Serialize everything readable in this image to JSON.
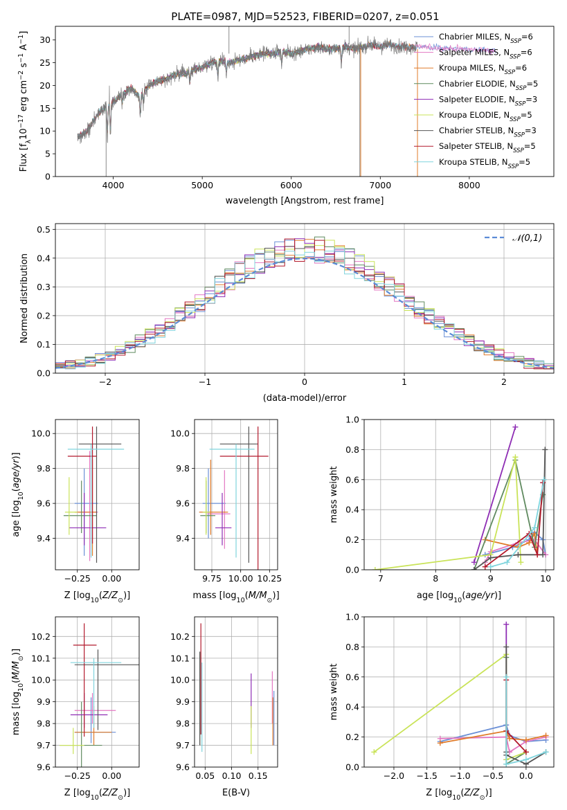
{
  "title": "PLATE=0987, MJD=52523, FIBERID=0207, z=0.051",
  "colors": [
    "#6a8fd6",
    "#e377c2",
    "#e07b2a",
    "#5f8a5f",
    "#8e2db4",
    "#c9e358",
    "#555555",
    "#b2182b",
    "#7fd4dd"
  ],
  "chart_data": [
    {
      "id": "spectrum",
      "type": "line",
      "xlabel": "wavelength [Angstrom, rest frame]",
      "ylabel": "Flux [f_λ 10^-17 erg cm^-2 s^-1 A^-1]",
      "xlim": [
        3350,
        8950
      ],
      "ylim": [
        0,
        33
      ],
      "xticks": [
        4000,
        5000,
        6000,
        7000,
        8000
      ],
      "yticks": [
        0,
        5,
        10,
        15,
        20,
        25,
        30
      ],
      "grid": false,
      "legend": "upper right",
      "data_range": [
        3600,
        7420
      ],
      "data_nodes": [
        [
          3600,
          8.5
        ],
        [
          3700,
          10
        ],
        [
          3800,
          13
        ],
        [
          3900,
          15
        ],
        [
          4000,
          16.5
        ],
        [
          4100,
          18
        ],
        [
          4200,
          19.5
        ],
        [
          4300,
          17.5
        ],
        [
          4400,
          20
        ],
        [
          4500,
          21
        ],
        [
          4600,
          21.5
        ],
        [
          4700,
          22.5
        ],
        [
          4800,
          22.5
        ],
        [
          4900,
          23.5
        ],
        [
          5000,
          24
        ],
        [
          5100,
          25
        ],
        [
          5200,
          25.5
        ],
        [
          5300,
          25
        ],
        [
          5400,
          25.5
        ],
        [
          5500,
          26
        ],
        [
          5600,
          26.5
        ],
        [
          5700,
          27
        ],
        [
          5800,
          27
        ],
        [
          5900,
          27.5
        ],
        [
          6000,
          27
        ],
        [
          6100,
          27.5
        ],
        [
          6200,
          28
        ],
        [
          6300,
          28.5
        ],
        [
          6400,
          28
        ],
        [
          6500,
          28
        ],
        [
          6600,
          28.5
        ],
        [
          6700,
          28
        ],
        [
          6800,
          28.5
        ],
        [
          6900,
          29
        ],
        [
          7000,
          28.5
        ],
        [
          7100,
          29
        ],
        [
          7200,
          28.5
        ],
        [
          7300,
          28.5
        ],
        [
          7420,
          28.5
        ]
      ],
      "series": [
        {
          "name": "Chabrier MILES, N_SSP=6",
          "label": "Chabrier MILES, N",
          "sub": "SSP",
          "eq": "=6",
          "range": [
            3600,
            8300
          ]
        },
        {
          "name": "Salpeter MILES, N_SSP=6",
          "label": "Salpeter MILES, N",
          "sub": "SSP",
          "eq": "=6",
          "range": [
            3600,
            8300
          ]
        },
        {
          "name": "Kroupa MILES, N_SSP=6",
          "label": "Kroupa MILES, N",
          "sub": "SSP",
          "eq": "=6",
          "range": [
            3600,
            7400
          ]
        },
        {
          "name": "Chabrier ELODIE, N_SSP=5",
          "label": "Chabrier ELODIE, N",
          "sub": "SSP",
          "eq": "=5",
          "range": [
            3900,
            6800
          ]
        },
        {
          "name": "Salpeter ELODIE, N_SSP=3",
          "label": "Salpeter ELODIE, N",
          "sub": "SSP",
          "eq": "=3",
          "range": [
            3900,
            6800
          ]
        },
        {
          "name": "Kroupa ELODIE, N_SSP=5",
          "label": "Kroupa ELODIE, N",
          "sub": "SSP",
          "eq": "=5",
          "range": [
            3900,
            6800
          ]
        },
        {
          "name": "Chabrier STELIB, N_SSP=3",
          "label": "Chabrier STELIB, N",
          "sub": "SSP",
          "eq": "=3",
          "range": [
            3600,
            7400
          ]
        },
        {
          "name": "Salpeter STELIB, N_SSP=5",
          "label": "Salpeter STELIB, N",
          "sub": "SSP",
          "eq": "=5",
          "range": [
            3600,
            7400
          ]
        },
        {
          "name": "Kroupa STELIB, N_SSP=5",
          "label": "Kroupa STELIB, N",
          "sub": "SSP",
          "eq": "=5",
          "range": [
            3600,
            7400
          ]
        }
      ]
    },
    {
      "id": "residuals",
      "type": "step",
      "xlabel": "(data-model)/error",
      "ylabel": "Normed distribution",
      "xlim": [
        -2.5,
        2.5
      ],
      "ylim": [
        0,
        0.52
      ],
      "xticks": [
        -2,
        -1,
        0,
        1,
        2
      ],
      "yticks": [
        0.0,
        0.1,
        0.2,
        0.3,
        0.4,
        0.5
      ],
      "grid": true,
      "legend": "upper right",
      "gaussian_label": "𝒩(0,1)",
      "bin_width": 0.1
    },
    {
      "id": "age-vs-Z",
      "type": "errorbar",
      "xlabel": "Z [log10(Z/Z⊙)]",
      "ylabel": "age [log10(age/yr)]",
      "xlim": [
        -0.41,
        0.2
      ],
      "ylim": [
        9.22,
        10.08
      ],
      "xticks": [
        -0.25,
        0.0
      ],
      "yticks": [
        9.4,
        9.6,
        9.8,
        10.0
      ],
      "grid": true,
      "points": [
        {
          "x": -0.2,
          "xerr": [
            0.07,
            0.1
          ],
          "y": 9.6,
          "yerr": [
            0.3,
            0.2
          ]
        },
        {
          "x": -0.16,
          "xerr": [
            0.08,
            0.06
          ],
          "y": 9.55,
          "yerr": [
            0.28,
            0.35
          ]
        },
        {
          "x": -0.14,
          "xerr": [
            0.13,
            0.03
          ],
          "y": 9.55,
          "yerr": [
            0.25,
            0.3
          ]
        },
        {
          "x": -0.22,
          "xerr": [
            0.13,
            0.11
          ],
          "y": 9.53,
          "yerr": [
            0.1,
            0.2
          ]
        },
        {
          "x": -0.2,
          "xerr": [
            0.11,
            0.16
          ],
          "y": 9.46,
          "yerr": [
            0.1,
            0.2
          ]
        },
        {
          "x": -0.31,
          "xerr": [
            0.03,
            0.06
          ],
          "y": 9.55,
          "yerr": [
            0.13,
            0.2
          ]
        },
        {
          "x": -0.11,
          "xerr": [
            0.13,
            0.18
          ],
          "y": 9.94,
          "yerr": [
            0.68,
            0.1
          ]
        },
        {
          "x": -0.14,
          "xerr": [
            0.18,
            0.03
          ],
          "y": 9.87,
          "yerr": [
            0.5,
            0.17
          ]
        },
        {
          "x": -0.15,
          "xerr": [
            0.17,
            0.24
          ],
          "y": 9.91,
          "yerr": [
            0.62,
            0.03
          ]
        }
      ]
    },
    {
      "id": "age-vs-mass",
      "type": "errorbar",
      "xlabel": "mass [log10(M/M⊙)]",
      "ylabel": "",
      "xlim": [
        9.6,
        10.32
      ],
      "ylim": [
        9.22,
        10.08
      ],
      "xticks": [
        9.75,
        10.0,
        10.25
      ],
      "yticks": [
        9.4,
        9.6,
        9.8,
        10.0
      ],
      "grid": true,
      "points": [
        {
          "x": 9.72,
          "xerr": [
            0.05,
            0.15
          ],
          "y": 9.6,
          "yerr": [
            0.2,
            0.2
          ]
        },
        {
          "x": 9.86,
          "xerr": [
            0.15,
            0.05
          ],
          "y": 9.54,
          "yerr": [
            0.2,
            0.25
          ]
        },
        {
          "x": 9.74,
          "xerr": [
            0.1,
            0.15
          ],
          "y": 9.55,
          "yerr": [
            0.13,
            0.3
          ]
        },
        {
          "x": 9.7,
          "xerr": [
            0.05,
            0.08
          ],
          "y": 9.53,
          "yerr": [
            0.1,
            0.2
          ]
        },
        {
          "x": 9.84,
          "xerr": [
            0.06,
            0.08
          ],
          "y": 9.46,
          "yerr": [
            0.1,
            0.2
          ]
        },
        {
          "x": 9.7,
          "xerr": [
            0.03,
            0.03
          ],
          "y": 9.55,
          "yerr": [
            0.13,
            0.2
          ]
        },
        {
          "x": 10.07,
          "xerr": [
            0.25,
            0.08
          ],
          "y": 9.94,
          "yerr": [
            0.68,
            0.1
          ]
        },
        {
          "x": 10.15,
          "xerr": [
            0.33,
            0.09
          ],
          "y": 9.87,
          "yerr": [
            0.7,
            0.17
          ]
        },
        {
          "x": 9.96,
          "xerr": [
            0.23,
            0.16
          ],
          "y": 9.91,
          "yerr": [
            0.62,
            0.03
          ]
        }
      ]
    },
    {
      "id": "weight-vs-age",
      "type": "line-markers",
      "xlabel": "age [log10(age/yr)]",
      "ylabel": "mass weight",
      "xlim": [
        6.7,
        10.15
      ],
      "ylim": [
        0,
        1.0
      ],
      "xticks": [
        7,
        8,
        9,
        10
      ],
      "yticks": [
        0.0,
        0.2,
        0.4,
        0.6,
        0.8,
        1.0
      ],
      "grid": true,
      "series": [
        {
          "x": [
            8.9,
            9.4,
            9.7,
            9.8,
            9.95,
            10.0
          ],
          "y": [
            0.1,
            0.15,
            0.2,
            0.25,
            0.2,
            0.1
          ]
        },
        {
          "x": [
            8.9,
            9.0,
            9.5,
            9.8,
            10.0
          ],
          "y": [
            0.05,
            0.12,
            0.18,
            0.2,
            0.1
          ]
        },
        {
          "x": [
            8.9,
            9.5,
            9.7,
            9.8,
            9.85
          ],
          "y": [
            0.2,
            0.15,
            0.18,
            0.24,
            0.1
          ]
        },
        {
          "x": [
            8.7,
            9.45,
            9.8,
            9.95
          ],
          "y": [
            0.0,
            0.73,
            0.15,
            0.5
          ]
        },
        {
          "x": [
            8.7,
            9.45
          ],
          "y": [
            0.05,
            0.95
          ]
        },
        {
          "x": [
            6.9,
            9.0,
            9.45,
            9.55
          ],
          "y": [
            0.0,
            0.1,
            0.75,
            0.05
          ]
        },
        {
          "x": [
            8.7,
            9.0,
            9.5,
            9.95,
            9.99
          ],
          "y": [
            0.0,
            0.08,
            0.1,
            0.1,
            0.8
          ]
        },
        {
          "x": [
            8.9,
            9.7,
            9.85,
            9.95
          ],
          "y": [
            0.02,
            0.24,
            0.1,
            0.58
          ]
        },
        {
          "x": [
            9.0,
            9.3,
            9.8,
            9.97
          ],
          "y": [
            0.02,
            0.05,
            0.28,
            0.6
          ]
        }
      ]
    },
    {
      "id": "mass-vs-Z",
      "type": "errorbar",
      "xlabel": "Z [log10(Z/Z⊙)]",
      "ylabel": "mass [log10(M/M⊙)]",
      "xlim": [
        -0.41,
        0.2
      ],
      "ylim": [
        9.6,
        10.29
      ],
      "xticks": [
        -0.25,
        0.0
      ],
      "yticks": [
        9.6,
        9.7,
        9.8,
        9.9,
        10.0,
        10.1,
        10.2
      ],
      "grid": true,
      "points": [
        {
          "x": -0.15,
          "xerr": [
            0.12,
            0.18
          ],
          "y": 9.76,
          "yerr": [
            0.05,
            0.16
          ]
        },
        {
          "x": -0.14,
          "xerr": [
            0.13,
            0.17
          ],
          "y": 9.86,
          "yerr": [
            0.06,
            0.08
          ]
        },
        {
          "x": -0.13,
          "xerr": [
            0.14,
            0.13
          ],
          "y": 9.76,
          "yerr": [
            0.06,
            0.12
          ]
        },
        {
          "x": -0.22,
          "xerr": [
            0.16,
            0.15
          ],
          "y": 9.7,
          "yerr": [
            0.1,
            0.2
          ]
        },
        {
          "x": -0.2,
          "xerr": [
            0.1,
            0.17
          ],
          "y": 9.84,
          "yerr": [
            0.06,
            0.1
          ]
        },
        {
          "x": -0.28,
          "xerr": [
            0.1,
            0.08
          ],
          "y": 9.7,
          "yerr": [
            0.04,
            0.08
          ]
        },
        {
          "x": -0.1,
          "xerr": [
            0.17,
            0.3
          ],
          "y": 10.07,
          "yerr": [
            0.3,
            0.07
          ]
        },
        {
          "x": -0.2,
          "xerr": [
            0.08,
            0.09
          ],
          "y": 10.16,
          "yerr": [
            0.42,
            0.1
          ]
        },
        {
          "x": -0.13,
          "xerr": [
            0.17,
            0.2
          ],
          "y": 10.08,
          "yerr": [
            0.3,
            0.02
          ]
        }
      ]
    },
    {
      "id": "mass-vs-EBV",
      "type": "errorbar",
      "xlabel": "E(B-V)",
      "ylabel": "",
      "xlim": [
        0.03,
        0.187
      ],
      "ylim": [
        9.6,
        10.29
      ],
      "xticks": [
        0.05,
        0.1,
        0.15
      ],
      "yticks": [
        9.6,
        9.7,
        9.8,
        9.9,
        10.0,
        10.1,
        10.2
      ],
      "grid": true,
      "points": [
        {
          "x": 0.18,
          "y": 9.8,
          "yerr": [
            0.1,
            0.15
          ]
        },
        {
          "x": 0.177,
          "y": 9.86,
          "yerr": [
            0.06,
            0.18
          ]
        },
        {
          "x": 0.178,
          "y": 9.8,
          "yerr": [
            0.1,
            0.12
          ]
        },
        {
          "x": 0.04,
          "y": 9.8,
          "yerr": [
            0.1,
            0.33
          ]
        },
        {
          "x": 0.137,
          "y": 9.84,
          "yerr": [
            0.06,
            0.19
          ]
        },
        {
          "x": 0.137,
          "y": 9.76,
          "yerr": [
            0.1,
            0.12
          ]
        },
        {
          "x": 0.04,
          "y": 9.9,
          "yerr": [
            0.2,
            0.23
          ]
        },
        {
          "x": 0.042,
          "y": 10.05,
          "yerr": [
            0.3,
            0.21
          ]
        },
        {
          "x": 0.044,
          "y": 9.8,
          "yerr": [
            0.13,
            0.28
          ]
        }
      ]
    },
    {
      "id": "weight-vs-Z",
      "type": "line-markers",
      "xlabel": "Z [log10(Z/Z⊙)]",
      "ylabel": "mass weight",
      "xlim": [
        -2.45,
        0.42
      ],
      "ylim": [
        0,
        1.0
      ],
      "xticks": [
        -2.0,
        -1.5,
        -1.0,
        -0.5,
        0.0
      ],
      "yticks": [
        0.0,
        0.2,
        0.4,
        0.6,
        0.8,
        1.0
      ],
      "grid": true,
      "series": [
        {
          "x": [
            -1.3,
            -0.3,
            -0.25,
            0.0,
            0.3
          ],
          "y": [
            0.17,
            0.28,
            0.21,
            0.17,
            0.18
          ]
        },
        {
          "x": [
            -1.3,
            -0.3,
            -0.25,
            0.0,
            0.3
          ],
          "y": [
            0.19,
            0.2,
            0.1,
            0.17,
            0.2
          ]
        },
        {
          "x": [
            -1.3,
            -0.3,
            -0.25,
            0.0,
            0.3
          ],
          "y": [
            0.16,
            0.24,
            0.19,
            0.18,
            0.21
          ]
        },
        {
          "x": [
            -0.3,
            -0.3,
            0.0
          ],
          "y": [
            0.73,
            0.02,
            0.1
          ]
        },
        {
          "x": [
            -0.3,
            -0.3
          ],
          "y": [
            0.95,
            0.05
          ]
        },
        {
          "x": [
            -2.3,
            -0.3,
            -0.3,
            0.0
          ],
          "y": [
            0.1,
            0.75,
            0.05,
            0.1
          ]
        },
        {
          "x": [
            -0.3,
            -0.3,
            -0.3,
            0.0,
            0.3
          ],
          "y": [
            0.8,
            0.1,
            0.08,
            0.02,
            0.1
          ]
        },
        {
          "x": [
            -0.3,
            -0.3,
            0.0
          ],
          "y": [
            0.58,
            0.24,
            0.1
          ]
        },
        {
          "x": [
            -0.3,
            -0.3,
            0.0,
            0.3
          ],
          "y": [
            0.6,
            0.02,
            0.05,
            0.1
          ]
        }
      ]
    }
  ]
}
